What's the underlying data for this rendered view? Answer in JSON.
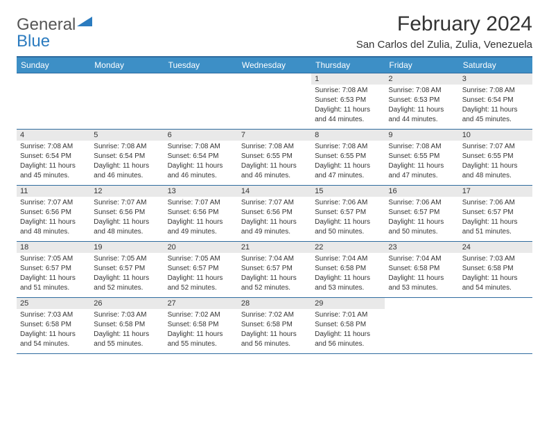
{
  "logo": {
    "general": "General",
    "blue": "Blue"
  },
  "title": "February 2024",
  "location": "San Carlos del Zulia, Zulia, Venezuela",
  "colors": {
    "header_bg": "#3d8fc6",
    "header_border": "#2d6a9e",
    "daynum_bg": "#e9e9e9",
    "text": "#333333",
    "logo_gray": "#555555",
    "logo_blue": "#2b7bbf"
  },
  "fonts": {
    "title_size": 30,
    "location_size": 15,
    "header_size": 12,
    "daynum_size": 11,
    "detail_size": 10
  },
  "weekdays": [
    "Sunday",
    "Monday",
    "Tuesday",
    "Wednesday",
    "Thursday",
    "Friday",
    "Saturday"
  ],
  "weeks": [
    [
      {
        "empty": true
      },
      {
        "empty": true
      },
      {
        "empty": true
      },
      {
        "empty": true
      },
      {
        "day": "1",
        "sunrise": "Sunrise: 7:08 AM",
        "sunset": "Sunset: 6:53 PM",
        "daylight": "Daylight: 11 hours and 44 minutes."
      },
      {
        "day": "2",
        "sunrise": "Sunrise: 7:08 AM",
        "sunset": "Sunset: 6:53 PM",
        "daylight": "Daylight: 11 hours and 44 minutes."
      },
      {
        "day": "3",
        "sunrise": "Sunrise: 7:08 AM",
        "sunset": "Sunset: 6:54 PM",
        "daylight": "Daylight: 11 hours and 45 minutes."
      }
    ],
    [
      {
        "day": "4",
        "sunrise": "Sunrise: 7:08 AM",
        "sunset": "Sunset: 6:54 PM",
        "daylight": "Daylight: 11 hours and 45 minutes."
      },
      {
        "day": "5",
        "sunrise": "Sunrise: 7:08 AM",
        "sunset": "Sunset: 6:54 PM",
        "daylight": "Daylight: 11 hours and 46 minutes."
      },
      {
        "day": "6",
        "sunrise": "Sunrise: 7:08 AM",
        "sunset": "Sunset: 6:54 PM",
        "daylight": "Daylight: 11 hours and 46 minutes."
      },
      {
        "day": "7",
        "sunrise": "Sunrise: 7:08 AM",
        "sunset": "Sunset: 6:55 PM",
        "daylight": "Daylight: 11 hours and 46 minutes."
      },
      {
        "day": "8",
        "sunrise": "Sunrise: 7:08 AM",
        "sunset": "Sunset: 6:55 PM",
        "daylight": "Daylight: 11 hours and 47 minutes."
      },
      {
        "day": "9",
        "sunrise": "Sunrise: 7:08 AM",
        "sunset": "Sunset: 6:55 PM",
        "daylight": "Daylight: 11 hours and 47 minutes."
      },
      {
        "day": "10",
        "sunrise": "Sunrise: 7:07 AM",
        "sunset": "Sunset: 6:55 PM",
        "daylight": "Daylight: 11 hours and 48 minutes."
      }
    ],
    [
      {
        "day": "11",
        "sunrise": "Sunrise: 7:07 AM",
        "sunset": "Sunset: 6:56 PM",
        "daylight": "Daylight: 11 hours and 48 minutes."
      },
      {
        "day": "12",
        "sunrise": "Sunrise: 7:07 AM",
        "sunset": "Sunset: 6:56 PM",
        "daylight": "Daylight: 11 hours and 48 minutes."
      },
      {
        "day": "13",
        "sunrise": "Sunrise: 7:07 AM",
        "sunset": "Sunset: 6:56 PM",
        "daylight": "Daylight: 11 hours and 49 minutes."
      },
      {
        "day": "14",
        "sunrise": "Sunrise: 7:07 AM",
        "sunset": "Sunset: 6:56 PM",
        "daylight": "Daylight: 11 hours and 49 minutes."
      },
      {
        "day": "15",
        "sunrise": "Sunrise: 7:06 AM",
        "sunset": "Sunset: 6:57 PM",
        "daylight": "Daylight: 11 hours and 50 minutes."
      },
      {
        "day": "16",
        "sunrise": "Sunrise: 7:06 AM",
        "sunset": "Sunset: 6:57 PM",
        "daylight": "Daylight: 11 hours and 50 minutes."
      },
      {
        "day": "17",
        "sunrise": "Sunrise: 7:06 AM",
        "sunset": "Sunset: 6:57 PM",
        "daylight": "Daylight: 11 hours and 51 minutes."
      }
    ],
    [
      {
        "day": "18",
        "sunrise": "Sunrise: 7:05 AM",
        "sunset": "Sunset: 6:57 PM",
        "daylight": "Daylight: 11 hours and 51 minutes."
      },
      {
        "day": "19",
        "sunrise": "Sunrise: 7:05 AM",
        "sunset": "Sunset: 6:57 PM",
        "daylight": "Daylight: 11 hours and 52 minutes."
      },
      {
        "day": "20",
        "sunrise": "Sunrise: 7:05 AM",
        "sunset": "Sunset: 6:57 PM",
        "daylight": "Daylight: 11 hours and 52 minutes."
      },
      {
        "day": "21",
        "sunrise": "Sunrise: 7:04 AM",
        "sunset": "Sunset: 6:57 PM",
        "daylight": "Daylight: 11 hours and 52 minutes."
      },
      {
        "day": "22",
        "sunrise": "Sunrise: 7:04 AM",
        "sunset": "Sunset: 6:58 PM",
        "daylight": "Daylight: 11 hours and 53 minutes."
      },
      {
        "day": "23",
        "sunrise": "Sunrise: 7:04 AM",
        "sunset": "Sunset: 6:58 PM",
        "daylight": "Daylight: 11 hours and 53 minutes."
      },
      {
        "day": "24",
        "sunrise": "Sunrise: 7:03 AM",
        "sunset": "Sunset: 6:58 PM",
        "daylight": "Daylight: 11 hours and 54 minutes."
      }
    ],
    [
      {
        "day": "25",
        "sunrise": "Sunrise: 7:03 AM",
        "sunset": "Sunset: 6:58 PM",
        "daylight": "Daylight: 11 hours and 54 minutes."
      },
      {
        "day": "26",
        "sunrise": "Sunrise: 7:03 AM",
        "sunset": "Sunset: 6:58 PM",
        "daylight": "Daylight: 11 hours and 55 minutes."
      },
      {
        "day": "27",
        "sunrise": "Sunrise: 7:02 AM",
        "sunset": "Sunset: 6:58 PM",
        "daylight": "Daylight: 11 hours and 55 minutes."
      },
      {
        "day": "28",
        "sunrise": "Sunrise: 7:02 AM",
        "sunset": "Sunset: 6:58 PM",
        "daylight": "Daylight: 11 hours and 56 minutes."
      },
      {
        "day": "29",
        "sunrise": "Sunrise: 7:01 AM",
        "sunset": "Sunset: 6:58 PM",
        "daylight": "Daylight: 11 hours and 56 minutes."
      },
      {
        "empty": true
      },
      {
        "empty": true
      }
    ]
  ]
}
